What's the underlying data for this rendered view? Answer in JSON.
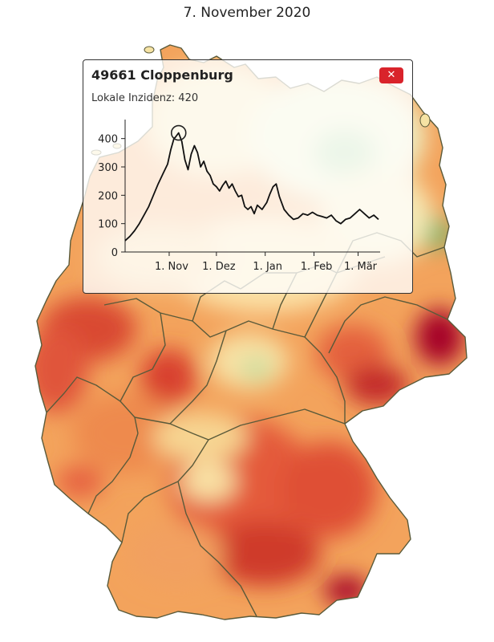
{
  "header": {
    "date": "7. November 2020"
  },
  "popup": {
    "title": "49661 Cloppenburg",
    "subtitle": "Lokale Inzidenz: 420",
    "close_icon": "close-icon"
  },
  "colors": {
    "line": "#111111",
    "close_button": "#d9232b",
    "state_border": "#5a5a3a",
    "highest": "#a50026",
    "lowest": "#1a9850"
  },
  "chart_data": {
    "type": "line",
    "title": "",
    "xlabel": "",
    "ylabel": "",
    "ylim": [
      0,
      450
    ],
    "xlim": [
      "2020-10-04",
      "2021-03-15"
    ],
    "yticks": [
      "0",
      "100",
      "200",
      "300",
      "400"
    ],
    "xticks": [
      {
        "label": "1. Nov",
        "date": "2020-11-01"
      },
      {
        "label": "1. Dez",
        "date": "2020-12-01"
      },
      {
        "label": "1. Jan",
        "date": "2021-01-01"
      },
      {
        "label": "1. Feb",
        "date": "2021-02-01"
      },
      {
        "label": "1. Mär",
        "date": "2021-03-01"
      }
    ],
    "highlight": {
      "date": "2020-11-07",
      "value": 420
    },
    "series": [
      {
        "values": [
          [
            "2020-10-04",
            40
          ],
          [
            "2020-10-07",
            55
          ],
          [
            "2020-10-10",
            75
          ],
          [
            "2020-10-13",
            100
          ],
          [
            "2020-10-16",
            130
          ],
          [
            "2020-10-19",
            160
          ],
          [
            "2020-10-22",
            200
          ],
          [
            "2020-10-25",
            240
          ],
          [
            "2020-10-28",
            275
          ],
          [
            "2020-10-31",
            310
          ],
          [
            "2020-11-02",
            360
          ],
          [
            "2020-11-04",
            400
          ],
          [
            "2020-11-05",
            405
          ],
          [
            "2020-11-07",
            420
          ],
          [
            "2020-11-09",
            390
          ],
          [
            "2020-11-11",
            325
          ],
          [
            "2020-11-13",
            290
          ],
          [
            "2020-11-15",
            345
          ],
          [
            "2020-11-17",
            375
          ],
          [
            "2020-11-19",
            350
          ],
          [
            "2020-11-21",
            300
          ],
          [
            "2020-11-23",
            320
          ],
          [
            "2020-11-25",
            285
          ],
          [
            "2020-11-27",
            270
          ],
          [
            "2020-11-29",
            240
          ],
          [
            "2020-12-01",
            230
          ],
          [
            "2020-12-03",
            215
          ],
          [
            "2020-12-05",
            235
          ],
          [
            "2020-12-07",
            250
          ],
          [
            "2020-12-09",
            225
          ],
          [
            "2020-12-11",
            240
          ],
          [
            "2020-12-13",
            215
          ],
          [
            "2020-12-15",
            195
          ],
          [
            "2020-12-17",
            200
          ],
          [
            "2020-12-19",
            160
          ],
          [
            "2020-12-21",
            150
          ],
          [
            "2020-12-23",
            160
          ],
          [
            "2020-12-25",
            135
          ],
          [
            "2020-12-27",
            165
          ],
          [
            "2020-12-30",
            150
          ],
          [
            "2021-01-02",
            175
          ],
          [
            "2021-01-04",
            205
          ],
          [
            "2021-01-06",
            230
          ],
          [
            "2021-01-08",
            240
          ],
          [
            "2021-01-10",
            195
          ],
          [
            "2021-01-13",
            150
          ],
          [
            "2021-01-16",
            130
          ],
          [
            "2021-01-19",
            115
          ],
          [
            "2021-01-22",
            120
          ],
          [
            "2021-01-25",
            135
          ],
          [
            "2021-01-28",
            130
          ],
          [
            "2021-01-31",
            140
          ],
          [
            "2021-02-03",
            130
          ],
          [
            "2021-02-06",
            125
          ],
          [
            "2021-02-09",
            120
          ],
          [
            "2021-02-12",
            130
          ],
          [
            "2021-02-15",
            110
          ],
          [
            "2021-02-18",
            100
          ],
          [
            "2021-02-21",
            115
          ],
          [
            "2021-02-24",
            120
          ],
          [
            "2021-02-27",
            135
          ],
          [
            "2021-03-02",
            150
          ],
          [
            "2021-03-05",
            135
          ],
          [
            "2021-03-08",
            120
          ],
          [
            "2021-03-11",
            130
          ],
          [
            "2021-03-14",
            115
          ]
        ]
      }
    ]
  }
}
